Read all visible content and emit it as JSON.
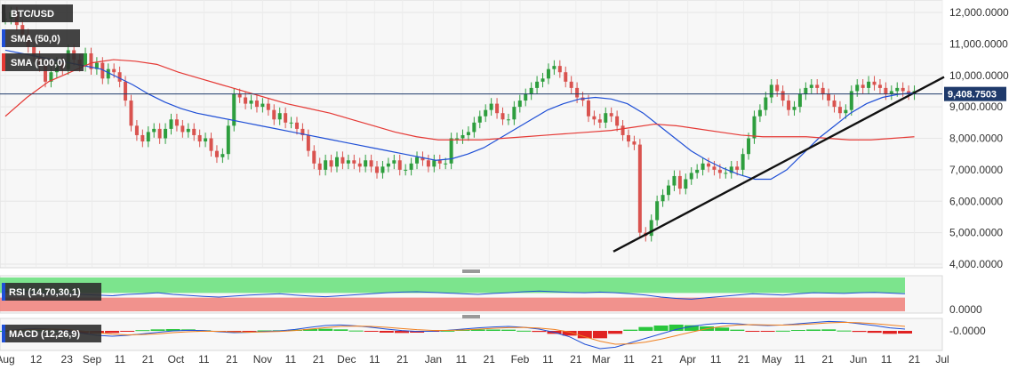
{
  "chart_data": [
    {
      "type": "candlestick",
      "symbol": "BTC/USD",
      "ylim": [
        4000,
        12000
      ],
      "yticks": [
        {
          "value": 12000,
          "label": "12,000.0000"
        },
        {
          "value": 11000,
          "label": "11,000.0000"
        },
        {
          "value": 10000,
          "label": "10,000.0000"
        },
        {
          "value": 9000,
          "label": "9,000.0000"
        },
        {
          "value": 8000,
          "label": "8,000.0000"
        },
        {
          "value": 7000,
          "label": "7,000.0000"
        },
        {
          "value": 6000,
          "label": "6,000.0000"
        },
        {
          "value": 5000,
          "label": "5,000.0000"
        },
        {
          "value": 4000,
          "label": "4,000.0000"
        }
      ],
      "current_price": 9408.7503,
      "current_price_label": "9,408.7503",
      "indicators": [
        {
          "name": "SMA (50,0)",
          "color": "#1f4fd6"
        },
        {
          "name": "SMA (100,0)",
          "color": "#e53935"
        }
      ],
      "candles_close": [
        11800,
        12000,
        11600,
        11300,
        10900,
        10600,
        10300,
        9800,
        10100,
        10400,
        10200,
        10800,
        10500,
        10300,
        10700,
        10200,
        10400,
        9900,
        10200,
        10100,
        9800,
        9200,
        8400,
        8100,
        7900,
        8200,
        8300,
        8000,
        8300,
        8600,
        8400,
        8200,
        8300,
        8100,
        7900,
        8000,
        7600,
        7400,
        7500,
        8400,
        9400,
        9300,
        9100,
        9200,
        9000,
        9100,
        8900,
        8600,
        8800,
        8500,
        8500,
        8300,
        8100,
        7600,
        7200,
        7000,
        7300,
        7100,
        7400,
        7200,
        7300,
        7200,
        7100,
        7300,
        7100,
        6900,
        7100,
        7200,
        7300,
        7000,
        7000,
        7200,
        7400,
        7300,
        7100,
        7300,
        7200,
        7200,
        8000,
        8000,
        8100,
        8200,
        8500,
        8700,
        8900,
        9100,
        8800,
        8600,
        8600,
        9000,
        9200,
        9400,
        9600,
        9800,
        9900,
        10200,
        10300,
        10100,
        9800,
        9600,
        9300,
        9200,
        8700,
        8600,
        8500,
        8800,
        8700,
        8400,
        8100,
        7900,
        7800,
        5000,
        4900,
        5400,
        6000,
        6200,
        6500,
        6800,
        6400,
        6700,
        6900,
        7000,
        7200,
        7100,
        7000,
        6900,
        6900,
        7100,
        7000,
        7500,
        8000,
        8700,
        8900,
        9300,
        9700,
        9500,
        9200,
        8900,
        9000,
        9400,
        9600,
        9700,
        9600,
        9400,
        9200,
        9000,
        8800,
        8900,
        9500,
        9700,
        9600,
        9800,
        9700,
        9600,
        9400,
        9500,
        9600,
        9500,
        9400,
        9500
      ],
      "sma50": [
        10800,
        10700,
        10600,
        10500,
        10400,
        10300,
        10200,
        9950,
        9700,
        9400,
        9150,
        8950,
        8800,
        8700,
        8600,
        8500,
        8400,
        8300,
        8200,
        8100,
        8000,
        7900,
        7800,
        7700,
        7600,
        7500,
        7400,
        7300,
        7350,
        7500,
        7700,
        8000,
        8300,
        8600,
        8900,
        9100,
        9250,
        9300,
        9250,
        9100,
        8800,
        8400,
        8000,
        7600,
        7300,
        7050,
        6850,
        6700,
        6700,
        7000,
        7500,
        8000,
        8400,
        8800,
        9100,
        9300,
        9400,
        9450
      ],
      "sma100": [
        8700,
        9300,
        9800,
        10100,
        10400,
        10500,
        10450,
        10350,
        10100,
        9900,
        9700,
        9500,
        9300,
        9100,
        8950,
        8800,
        8600,
        8400,
        8200,
        8050,
        7950,
        7950,
        7950,
        8000,
        8050,
        8100,
        8150,
        8200,
        8250,
        8350,
        8450,
        8400,
        8300,
        8200,
        8100,
        8050,
        8050,
        8050,
        8000,
        7950,
        7950,
        8000,
        8050
      ],
      "trendline": [
        {
          "x": "Mar 11",
          "y": 4400
        },
        {
          "x": "Jul",
          "y": 9950
        }
      ]
    },
    {
      "type": "line",
      "title": "RSI (14,70,30,1)",
      "ylim": [
        0,
        100
      ],
      "yticks": [
        {
          "value": 0,
          "label": "0.0000"
        }
      ],
      "overbought": 70,
      "oversold": 30,
      "values": [
        58,
        60,
        55,
        52,
        54,
        50,
        48,
        46,
        50,
        52,
        55,
        50,
        47,
        44,
        42,
        45,
        48,
        50,
        52,
        48,
        45,
        43,
        46,
        49,
        52,
        55,
        57,
        58,
        56,
        54,
        52,
        50,
        53,
        55,
        58,
        60,
        58,
        56,
        55,
        57,
        55,
        52,
        48,
        42,
        38,
        36,
        40,
        44,
        48,
        52,
        50,
        48,
        52,
        55,
        54,
        53,
        55,
        56,
        54,
        52
      ]
    },
    {
      "type": "line",
      "title": "MACD (12,26,9)",
      "yticks": [
        {
          "value": 0,
          "label": "-0.0000"
        }
      ],
      "macd": [
        0,
        50,
        80,
        60,
        20,
        -80,
        -150,
        -180,
        -150,
        -100,
        -50,
        0,
        20,
        10,
        -30,
        -60,
        -50,
        -20,
        0,
        50,
        120,
        180,
        200,
        170,
        120,
        60,
        10,
        -20,
        -10,
        20,
        60,
        100,
        130,
        150,
        120,
        60,
        -50,
        -200,
        -450,
        -600,
        -550,
        -400,
        -250,
        -100,
        50,
        150,
        220,
        260,
        240,
        200,
        180,
        200,
        240,
        280,
        320,
        300,
        240,
        180,
        100,
        60
      ],
      "signal": [
        0,
        30,
        55,
        60,
        45,
        0,
        -60,
        -110,
        -135,
        -125,
        -100,
        -60,
        -30,
        -10,
        -15,
        -35,
        -45,
        -35,
        -20,
        10,
        60,
        110,
        150,
        160,
        150,
        120,
        80,
        40,
        15,
        15,
        30,
        55,
        85,
        110,
        115,
        95,
        50,
        -40,
        -200,
        -350,
        -450,
        -440,
        -380,
        -280,
        -160,
        -40,
        70,
        150,
        200,
        210,
        200,
        195,
        210,
        235,
        270,
        290,
        275,
        245,
        200,
        150
      ]
    }
  ],
  "x_axis": {
    "ticks": [
      {
        "label": "Aug",
        "x": 0.0
      },
      {
        "label": "12",
        "x": 11.0
      },
      {
        "label": "23",
        "x": 22.0
      },
      {
        "label": "Sep",
        "x": 31.0
      },
      {
        "label": "11",
        "x": 41.0
      },
      {
        "label": "21",
        "x": 51.0
      },
      {
        "label": "Oct",
        "x": 61.0
      },
      {
        "label": "11",
        "x": 71.0
      },
      {
        "label": "21",
        "x": 81.0
      },
      {
        "label": "Nov",
        "x": 92.0
      },
      {
        "label": "11",
        "x": 102.0
      },
      {
        "label": "21",
        "x": 112.0
      },
      {
        "label": "Dec",
        "x": 122.0
      },
      {
        "label": "11",
        "x": 132.0
      },
      {
        "label": "21",
        "x": 142.0
      },
      {
        "label": "Jan",
        "x": 153.0
      },
      {
        "label": "11",
        "x": 163.0
      },
      {
        "label": "21",
        "x": 173.0
      },
      {
        "label": "Feb",
        "x": 184.0
      },
      {
        "label": "11",
        "x": 194.0
      },
      {
        "label": "21",
        "x": 204.0
      },
      {
        "label": "Mar",
        "x": 213.0
      },
      {
        "label": "11",
        "x": 223.0
      },
      {
        "label": "21",
        "x": 233.0
      },
      {
        "label": "Apr",
        "x": 244.0
      },
      {
        "label": "11",
        "x": 254.0
      },
      {
        "label": "21",
        "x": 264.0
      },
      {
        "label": "May",
        "x": 274.0
      },
      {
        "label": "11",
        "x": 284.0
      },
      {
        "label": "21",
        "x": 294.0
      },
      {
        "label": "Jun",
        "x": 305.0
      },
      {
        "label": "11",
        "x": 315.0
      },
      {
        "label": "21",
        "x": 325.0
      },
      {
        "label": "Jul",
        "x": 335.0
      }
    ],
    "range": [
      0,
      335
    ]
  }
}
